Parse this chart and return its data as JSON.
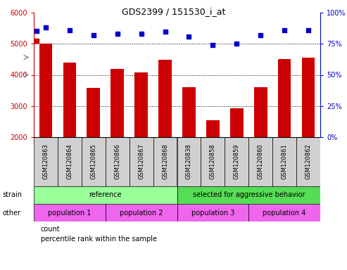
{
  "title": "GDS2399 / 151530_i_at",
  "samples": [
    "GSM120863",
    "GSM120864",
    "GSM120865",
    "GSM120866",
    "GSM120867",
    "GSM120868",
    "GSM120838",
    "GSM120858",
    "GSM120859",
    "GSM120860",
    "GSM120861",
    "GSM120862"
  ],
  "counts": [
    5000,
    4400,
    3580,
    4200,
    4080,
    4480,
    3600,
    2540,
    2930,
    3600,
    4500,
    4560
  ],
  "percentiles": [
    88,
    86,
    82,
    83,
    83,
    85,
    81,
    74,
    75,
    82,
    86,
    86
  ],
  "ylim_left": [
    2000,
    6000
  ],
  "ylim_right": [
    0,
    100
  ],
  "yticks_left": [
    2000,
    3000,
    4000,
    5000,
    6000
  ],
  "yticks_right": [
    0,
    25,
    50,
    75,
    100
  ],
  "bar_color": "#cc0000",
  "dot_color": "#0000cc",
  "strain_groups": [
    {
      "label": "reference",
      "start": 0,
      "end": 6,
      "color": "#99ff99"
    },
    {
      "label": "selected for aggressive behavior",
      "start": 6,
      "end": 12,
      "color": "#55dd55"
    }
  ],
  "other_groups": [
    {
      "label": "population 1",
      "start": 0,
      "end": 3,
      "color": "#ee66ee"
    },
    {
      "label": "population 2",
      "start": 3,
      "end": 6,
      "color": "#ee66ee"
    },
    {
      "label": "population 3",
      "start": 6,
      "end": 9,
      "color": "#ee66ee"
    },
    {
      "label": "population 4",
      "start": 9,
      "end": 12,
      "color": "#ee66ee"
    }
  ],
  "strain_label": "strain",
  "other_label": "other",
  "legend_count_label": "count",
  "legend_pct_label": "percentile rank within the sample",
  "bar_width": 0.55
}
